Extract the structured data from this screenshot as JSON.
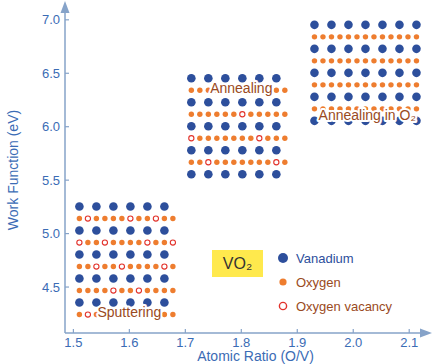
{
  "chart_data": {
    "type": "region",
    "x_label": "Atomic Ratio (O/V)",
    "y_label": "Work Function (eV)",
    "xlim": [
      1.485,
      2.13
    ],
    "ylim": [
      4.07,
      7.12
    ],
    "xticks": [
      1.5,
      1.6,
      1.7,
      1.8,
      1.9,
      {
        "value": 2,
        "label": "2.0"
      },
      2.1
    ],
    "yticks": [
      4.5,
      {
        "value": 5,
        "label": "5.0"
      },
      5.5,
      {
        "value": 6,
        "label": "6.0"
      },
      6.5,
      {
        "value": 7,
        "label": "7.0"
      }
    ],
    "regions": [
      {
        "label": "Sputtering",
        "x": [
          1.5,
          1.7
        ],
        "y": [
          4.15,
          5.3
        ]
      },
      {
        "label": "Annealing",
        "x": [
          1.7,
          1.9
        ],
        "y": [
          5.45,
          6.5
        ]
      },
      {
        "label": "Annealing in O₂",
        "x": [
          1.92,
          2.13
        ],
        "y": [
          6.0,
          7.0
        ]
      }
    ],
    "series": [
      {
        "name": "Vanadium",
        "color": "#2d4f9c",
        "marker": "filled"
      },
      {
        "name": "Oxygen",
        "color": "#ee7d2f",
        "marker": "filled"
      },
      {
        "name": "Oxygen vacancy",
        "color": "#e2322b",
        "marker": "ring"
      }
    ],
    "annotations": [
      {
        "text": "VO₂",
        "color": "#ffe94d"
      }
    ]
  }
}
